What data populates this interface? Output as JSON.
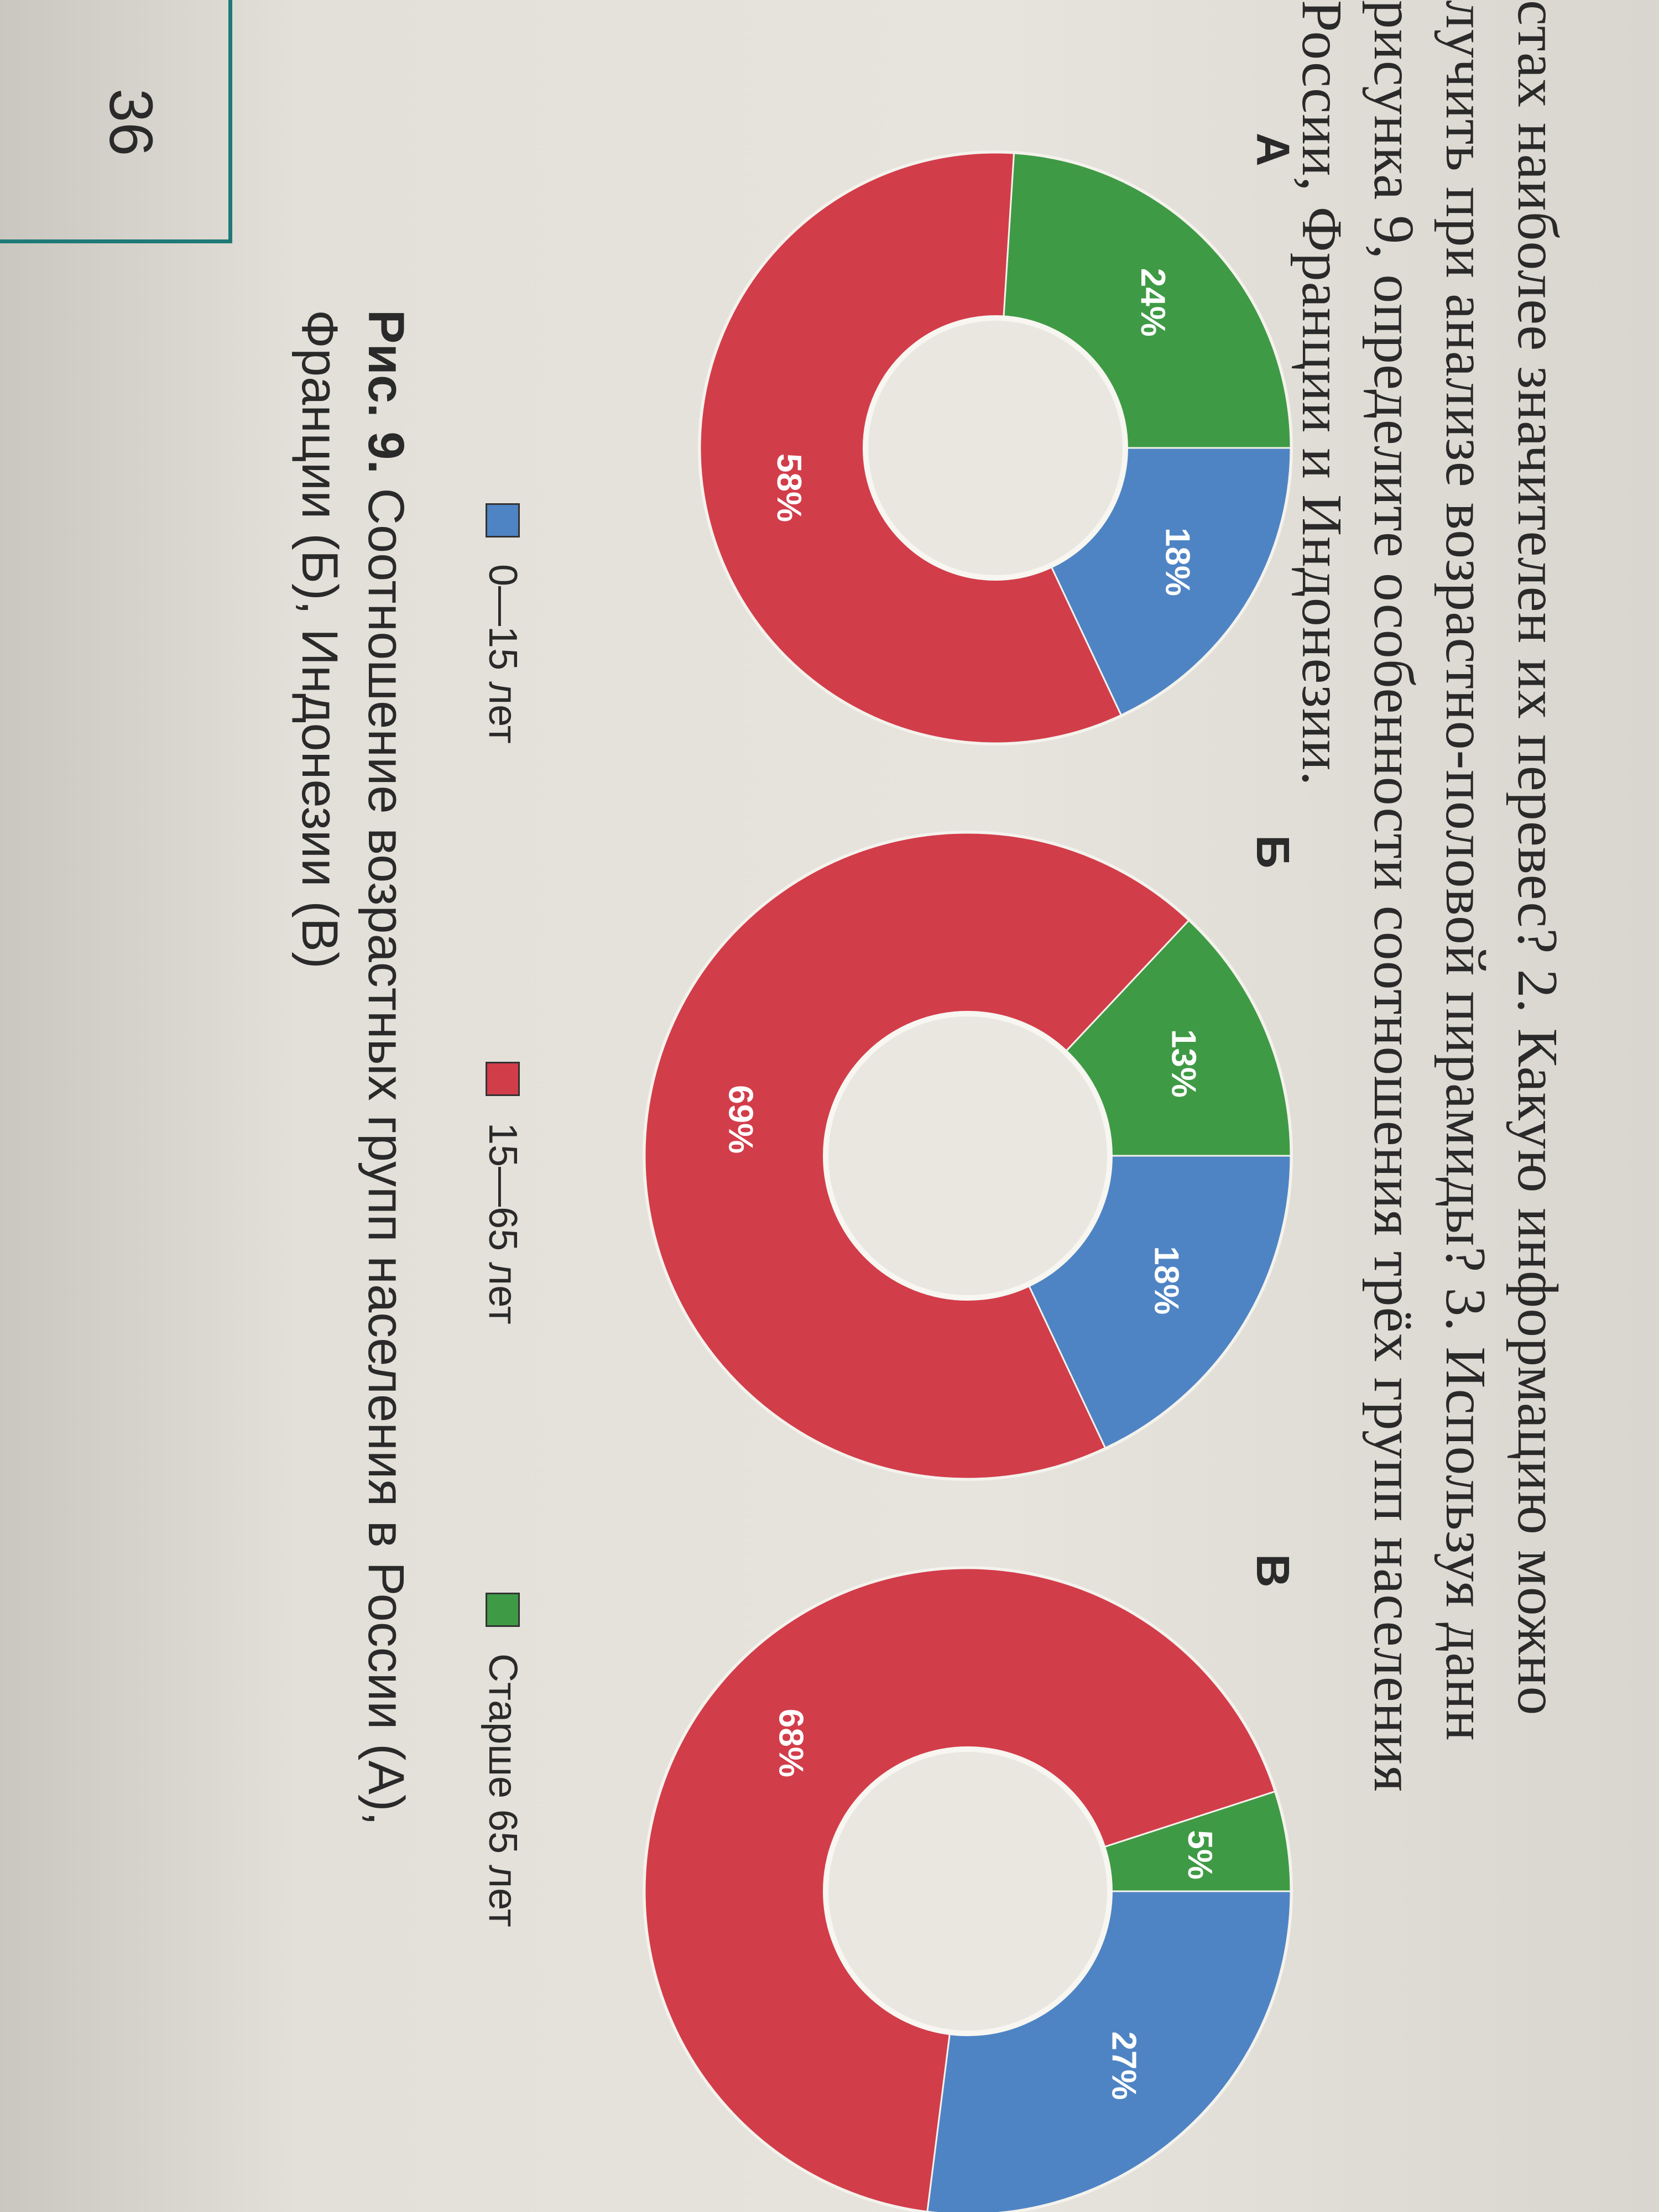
{
  "text": {
    "lines": [
      "стах наиболее значителен их перевес? 2. Какую информацию можно",
      "лучить при анализе возрастно-половой пирамиды? 3. Используя данн",
      "рисунка 9, определите особенности соотношения трёх групп населения",
      "России, Франции и Индонезии."
    ]
  },
  "colors": {
    "age_0_15": "#4f84c4",
    "age_15_65": "#d23d4a",
    "age_65_plus": "#3f9a45"
  },
  "chart_data": [
    {
      "type": "pie",
      "label": "А",
      "categories": [
        "0—15 лет",
        "15—65 лет",
        "Старше 65 лет"
      ],
      "values": [
        18,
        58,
        24
      ],
      "value_labels": [
        "18%",
        "58%",
        "24%"
      ]
    },
    {
      "type": "pie",
      "label": "Б",
      "categories": [
        "0—15 лет",
        "15—65 лет",
        "Старше 65 лет"
      ],
      "values": [
        18,
        69,
        13
      ],
      "value_labels": [
        "18%",
        "69%",
        "13%"
      ]
    },
    {
      "type": "pie",
      "label": "В",
      "categories": [
        "0—15 лет",
        "15—65 лет",
        "Старше 65 лет"
      ],
      "values": [
        27,
        68,
        5
      ],
      "value_labels": [
        "27%",
        "68%",
        "5%"
      ]
    }
  ],
  "legend": [
    {
      "label": "0—15 лет",
      "color_key": "age_0_15"
    },
    {
      "label": "15—65 лет",
      "color_key": "age_15_65"
    },
    {
      "label": "Старше 65 лет",
      "color_key": "age_65_plus"
    }
  ],
  "caption": {
    "prefix": "Рис. 9.",
    "line1": " Соотношение возрастных групп населения в России (А),",
    "line2": "Франции (Б), Индонезии (В)"
  },
  "page_number": "36"
}
